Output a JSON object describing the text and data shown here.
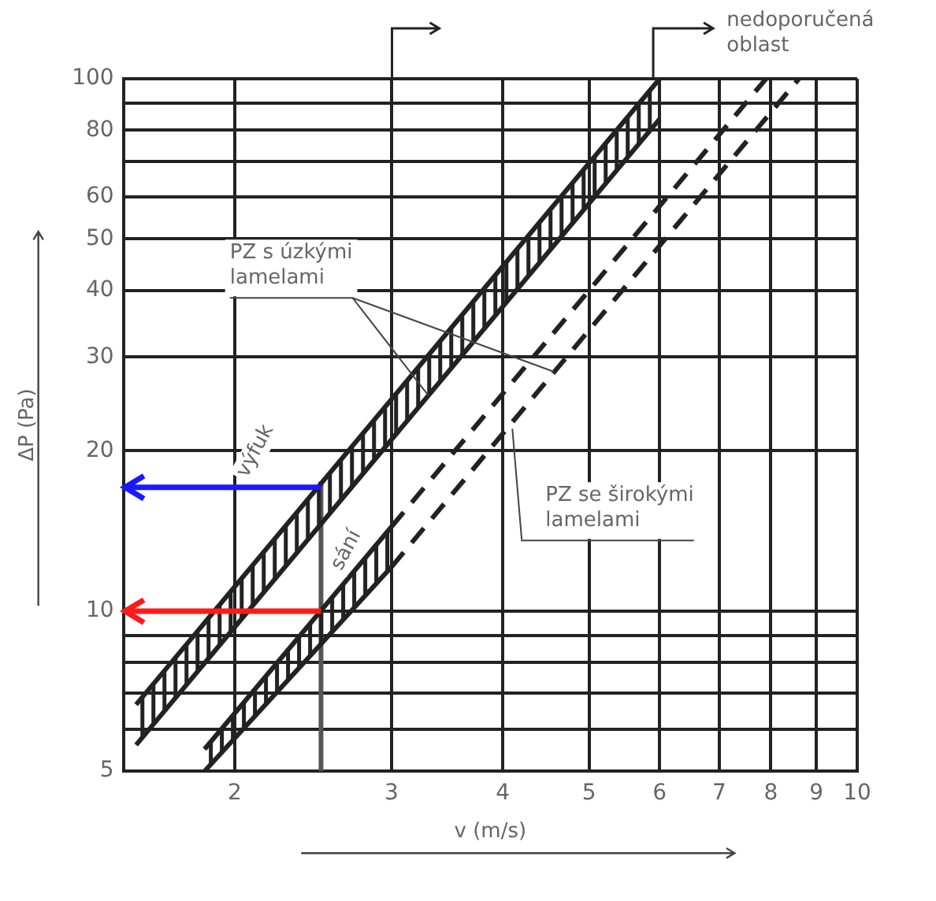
{
  "chart_data": {
    "type": "line",
    "xlabel": "v (m/s)",
    "ylabel": "ΔP (Pa)",
    "log": "xy",
    "grid": true,
    "legend": false,
    "xlim": [
      1.5,
      10
    ],
    "xticks": [
      2,
      3,
      4,
      5,
      6,
      7,
      8,
      9,
      10
    ],
    "ylim": [
      5,
      100
    ],
    "yticks": [
      5,
      {
        "value": 6,
        "label": null
      },
      {
        "value": 7,
        "label": null
      },
      {
        "value": 8,
        "label": null
      },
      {
        "value": 9,
        "label": null
      },
      10,
      20,
      30,
      40,
      50,
      60,
      {
        "value": 70,
        "label": null
      },
      80,
      {
        "value": 90,
        "label": null
      },
      100
    ],
    "series": [
      {
        "type": "line",
        "color": "#222222",
        "line_style": "solid",
        "x": [
          1.55,
          6
        ],
        "values": [
          6.67,
          100
        ]
      },
      {
        "type": "line",
        "color": "#222222",
        "line_style": "solid",
        "x": [
          1.55,
          6
        ],
        "values": [
          5.6,
          84
        ]
      },
      {
        "type": "line",
        "color": "#222222",
        "line_style": "solid",
        "x": [
          1.85,
          3.0
        ],
        "values": [
          5.5,
          14.4
        ]
      },
      {
        "type": "line",
        "color": "#222222",
        "line_style": "solid",
        "x": [
          1.85,
          3.0
        ],
        "values": [
          5.0,
          12.1
        ]
      },
      {
        "type": "line",
        "color": "#222222",
        "line_style": "dashed",
        "x": [
          3.0,
          7.9
        ],
        "values": [
          14.4,
          100
        ]
      },
      {
        "type": "line",
        "color": "#222222",
        "line_style": "dashed",
        "x": [
          3.0,
          8.6
        ],
        "values": [
          12.1,
          100
        ]
      },
      {
        "type": "line",
        "color": "#555555",
        "line_style": "solid",
        "x": [
          2.5,
          2.5
        ],
        "values": [
          5,
          17.5
        ]
      }
    ],
    "annotations": [
      {
        "text": "PZ s úzkými lamelami",
        "x": 3.3,
        "y": 25.4
      },
      {
        "text": "PZ se širokými lamelami",
        "x": 4.1,
        "y": 22
      },
      {
        "text": "výfuk",
        "x": 2.29,
        "y": 14.6
      },
      {
        "text": "sání",
        "x": 2.67,
        "y": 11.5
      },
      "nedoporučená oblast"
    ]
  }
}
